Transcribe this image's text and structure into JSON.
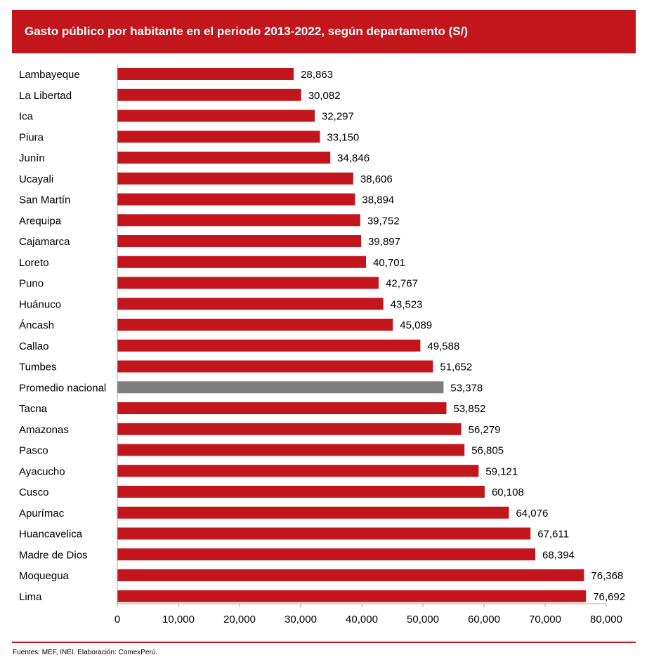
{
  "chart_data": {
    "type": "bar",
    "orientation": "horizontal",
    "title": "Gasto público por habitante en el periodo 2013-2022, según departamento (S/)",
    "categories": [
      "Lambayeque",
      "La Libertad",
      "Ica",
      "Piura",
      "Junín",
      "Ucayali",
      "San Martín",
      "Arequipa",
      "Cajamarca",
      "Loreto",
      "Puno",
      "Huánuco",
      "Áncash",
      "Callao",
      "Tumbes",
      "Promedio nacional",
      "Tacna",
      "Amazonas",
      "Pasco",
      "Ayacucho",
      "Cusco",
      "Apurímac",
      "Huancavelica",
      "Madre de Dios",
      "Moquegua",
      "Lima"
    ],
    "values": [
      28863,
      30082,
      32297,
      33150,
      34846,
      38606,
      38894,
      39752,
      39897,
      40701,
      42767,
      43523,
      45089,
      49588,
      51652,
      53378,
      53852,
      56279,
      56805,
      59121,
      60108,
      64076,
      67611,
      68394,
      76368,
      76692
    ],
    "value_labels": [
      "28,863",
      "30,082",
      "32,297",
      "33,150",
      "34,846",
      "38,606",
      "38,894",
      "39,752",
      "39,897",
      "40,701",
      "42,767",
      "43,523",
      "45,089",
      "49,588",
      "51,652",
      "53,378",
      "53,852",
      "56,279",
      "56,805",
      "59,121",
      "60,108",
      "64,076",
      "67,611",
      "68,394",
      "76,368",
      "76,692"
    ],
    "xlim": [
      0,
      80000
    ],
    "x_ticks": [
      0,
      10000,
      20000,
      30000,
      40000,
      50000,
      60000,
      70000,
      80000
    ],
    "x_tick_labels": [
      "0",
      "10,000",
      "20,000",
      "30,000",
      "40,000",
      "50,000",
      "60,000",
      "70,000",
      "80,000"
    ],
    "highlight_category": "Promedio nacional",
    "grid": false,
    "colors": {
      "bar": "#c3161c",
      "highlight": "#7f7f7f",
      "axis": "#a6a6a6"
    }
  },
  "footer": {
    "source": "Fuentes: MEF, INEI. Elaboración: ComexPerú."
  }
}
